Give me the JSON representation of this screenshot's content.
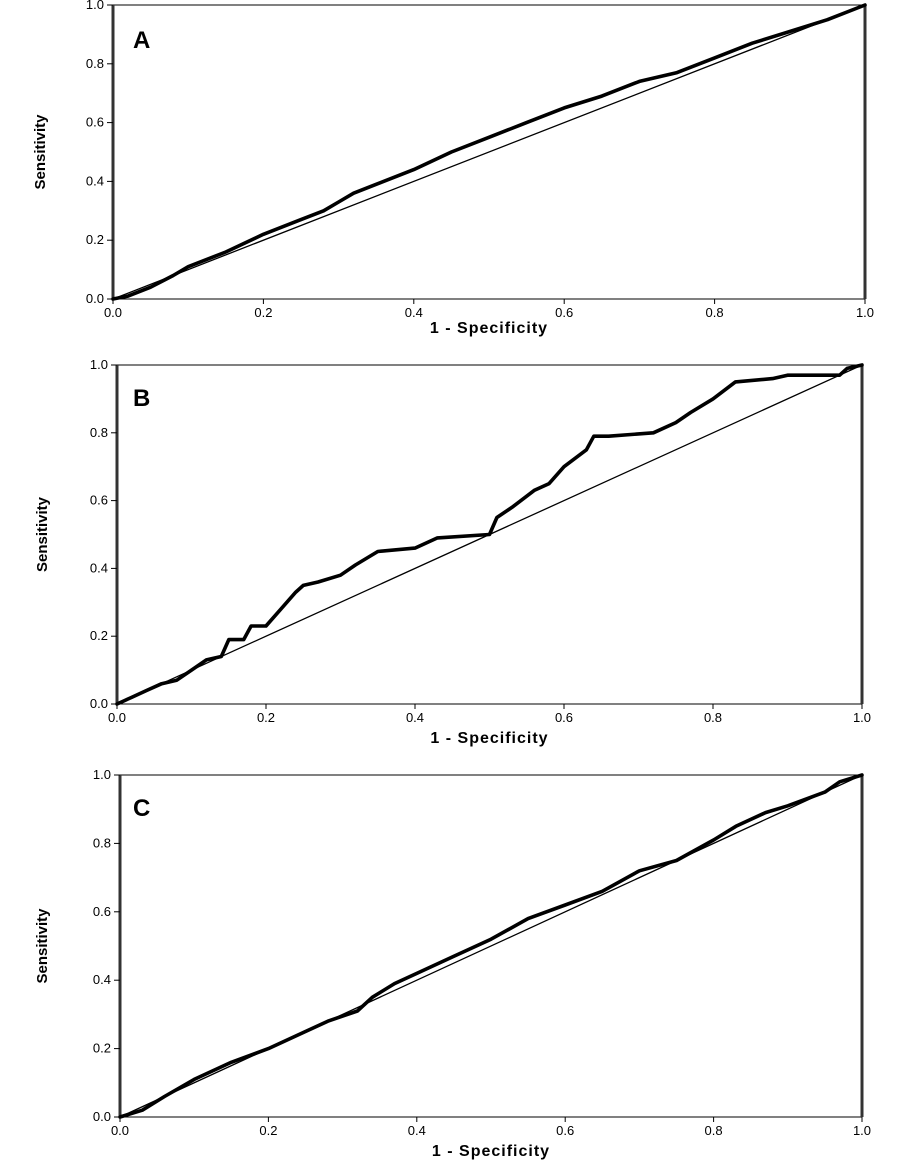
{
  "chart_data": [
    {
      "type": "line",
      "panel_label": "A",
      "xlabel": "1 - Specificity",
      "ylabel": "Sensitivity",
      "xlim": [
        0,
        1
      ],
      "ylim": [
        0,
        1
      ],
      "x_ticks": [
        "0.0",
        "0.2",
        "0.4",
        "0.6",
        "0.8",
        "1.0"
      ],
      "y_ticks": [
        "0.0",
        "0.2",
        "0.4",
        "0.6",
        "0.8",
        "1.0"
      ],
      "series": [
        {
          "style": "roc-curve",
          "points": [
            [
              0,
              0
            ],
            [
              0.02,
              0.01
            ],
            [
              0.05,
              0.04
            ],
            [
              0.08,
              0.08
            ],
            [
              0.1,
              0.11
            ],
            [
              0.15,
              0.16
            ],
            [
              0.2,
              0.22
            ],
            [
              0.25,
              0.27
            ],
            [
              0.28,
              0.3
            ],
            [
              0.3,
              0.33
            ],
            [
              0.32,
              0.36
            ],
            [
              0.35,
              0.39
            ],
            [
              0.4,
              0.44
            ],
            [
              0.45,
              0.5
            ],
            [
              0.5,
              0.55
            ],
            [
              0.55,
              0.6
            ],
            [
              0.6,
              0.65
            ],
            [
              0.65,
              0.69
            ],
            [
              0.7,
              0.74
            ],
            [
              0.75,
              0.77
            ],
            [
              0.8,
              0.82
            ],
            [
              0.85,
              0.87
            ],
            [
              0.9,
              0.91
            ],
            [
              0.95,
              0.95
            ],
            [
              1,
              1
            ]
          ]
        },
        {
          "style": "reference-diagonal",
          "points": [
            [
              0,
              0
            ],
            [
              1,
              1
            ]
          ]
        }
      ]
    },
    {
      "type": "line",
      "panel_label": "B",
      "xlabel": "1 - Specificity",
      "ylabel": "Sensitivity",
      "xlim": [
        0,
        1
      ],
      "ylim": [
        0,
        1
      ],
      "x_ticks": [
        "0.0",
        "0.2",
        "0.4",
        "0.6",
        "0.8",
        "1.0"
      ],
      "y_ticks": [
        "0.0",
        "0.2",
        "0.4",
        "0.6",
        "0.8",
        "1.0"
      ],
      "series": [
        {
          "style": "roc-curve",
          "points": [
            [
              0,
              0
            ],
            [
              0.01,
              0.01
            ],
            [
              0.02,
              0.02
            ],
            [
              0.04,
              0.04
            ],
            [
              0.06,
              0.06
            ],
            [
              0.08,
              0.07
            ],
            [
              0.1,
              0.1
            ],
            [
              0.12,
              0.13
            ],
            [
              0.14,
              0.14
            ],
            [
              0.15,
              0.19
            ],
            [
              0.17,
              0.19
            ],
            [
              0.18,
              0.23
            ],
            [
              0.2,
              0.23
            ],
            [
              0.22,
              0.28
            ],
            [
              0.24,
              0.33
            ],
            [
              0.25,
              0.35
            ],
            [
              0.27,
              0.36
            ],
            [
              0.3,
              0.38
            ],
            [
              0.32,
              0.41
            ],
            [
              0.35,
              0.45
            ],
            [
              0.4,
              0.46
            ],
            [
              0.43,
              0.49
            ],
            [
              0.5,
              0.5
            ],
            [
              0.51,
              0.55
            ],
            [
              0.53,
              0.58
            ],
            [
              0.56,
              0.63
            ],
            [
              0.58,
              0.65
            ],
            [
              0.6,
              0.7
            ],
            [
              0.63,
              0.75
            ],
            [
              0.64,
              0.79
            ],
            [
              0.66,
              0.79
            ],
            [
              0.72,
              0.8
            ],
            [
              0.75,
              0.83
            ],
            [
              0.77,
              0.86
            ],
            [
              0.8,
              0.9
            ],
            [
              0.83,
              0.95
            ],
            [
              0.88,
              0.96
            ],
            [
              0.9,
              0.97
            ],
            [
              0.97,
              0.97
            ],
            [
              0.98,
              0.99
            ],
            [
              1,
              1
            ]
          ]
        },
        {
          "style": "reference-diagonal",
          "points": [
            [
              0,
              0
            ],
            [
              1,
              1
            ]
          ]
        }
      ]
    },
    {
      "type": "line",
      "panel_label": "C",
      "xlabel": "1 - Specificity",
      "ylabel": "Sensitivity",
      "xlim": [
        0,
        1
      ],
      "ylim": [
        0,
        1
      ],
      "x_ticks": [
        "0.0",
        "0.2",
        "0.4",
        "0.6",
        "0.8",
        "1.0"
      ],
      "y_ticks": [
        "0.0",
        "0.2",
        "0.4",
        "0.6",
        "0.8",
        "1.0"
      ],
      "series": [
        {
          "style": "roc-curve",
          "points": [
            [
              0,
              0
            ],
            [
              0.03,
              0.02
            ],
            [
              0.06,
              0.06
            ],
            [
              0.1,
              0.11
            ],
            [
              0.15,
              0.16
            ],
            [
              0.2,
              0.2
            ],
            [
              0.25,
              0.25
            ],
            [
              0.28,
              0.28
            ],
            [
              0.32,
              0.31
            ],
            [
              0.34,
              0.35
            ],
            [
              0.37,
              0.39
            ],
            [
              0.4,
              0.42
            ],
            [
              0.45,
              0.47
            ],
            [
              0.5,
              0.52
            ],
            [
              0.55,
              0.58
            ],
            [
              0.6,
              0.62
            ],
            [
              0.65,
              0.66
            ],
            [
              0.7,
              0.72
            ],
            [
              0.75,
              0.75
            ],
            [
              0.8,
              0.81
            ],
            [
              0.83,
              0.85
            ],
            [
              0.87,
              0.89
            ],
            [
              0.9,
              0.91
            ],
            [
              0.95,
              0.95
            ],
            [
              0.97,
              0.98
            ],
            [
              1,
              1
            ]
          ]
        },
        {
          "style": "reference-diagonal",
          "points": [
            [
              0,
              0
            ],
            [
              1,
              1
            ]
          ]
        }
      ]
    }
  ]
}
